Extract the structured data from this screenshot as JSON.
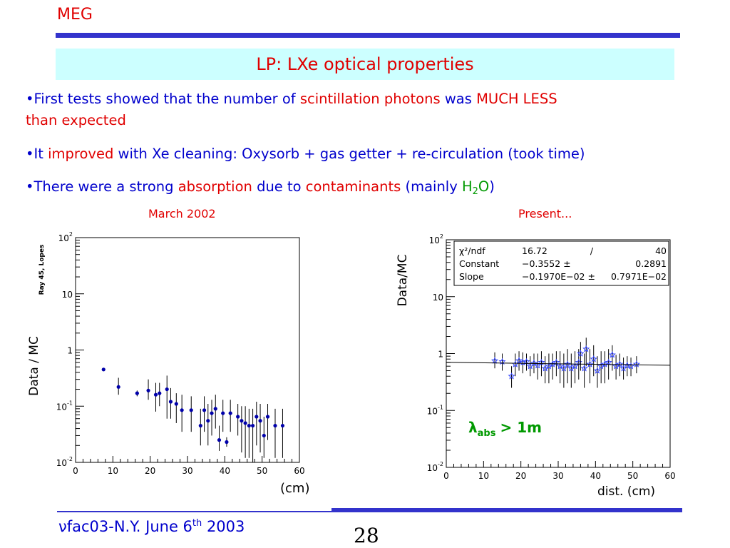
{
  "header": {
    "title": "MEG"
  },
  "slide": {
    "title": "LP: LXe optical properties"
  },
  "bullets": {
    "b1": {
      "p1": "•First tests showed that the number of ",
      "p2": "scintillation photons",
      "p3": " was ",
      "p4": "MUCH LESS",
      "p5": "than expected"
    },
    "b2": {
      "p1": "•It ",
      "p2": "improved",
      "p3": " with Xe cleaning: Oxysorb + gas getter + re-circulation (took time)"
    },
    "b3": {
      "p1": "•There were a strong ",
      "p2": "absorption",
      "p3": " due to ",
      "p4": "contaminants",
      "p5": " (mainly ",
      "p6": "H",
      "p7": "2",
      "p8": "O",
      "p9": ")"
    }
  },
  "captions": {
    "left": "March 2002",
    "right": "Present..."
  },
  "footer": {
    "prefix": "ν",
    "text": "fac03-N.Y. June 6",
    "sup": "th",
    "year": " 2003",
    "page_number": "28"
  },
  "colors": {
    "accent_blue": "#3333cc",
    "title_bg": "#ccffff",
    "text_blue": "#0000cc",
    "text_red": "#e00000",
    "text_green": "#009900"
  },
  "chart_data": [
    {
      "type": "scatter",
      "title": "March 2002",
      "ylabel": "Data / MC",
      "ylabel_sub": "Ray 45, Lopes",
      "xlabel": "(cm)",
      "xlim": [
        0,
        60
      ],
      "ylim": [
        0.01,
        100
      ],
      "yscale": "log",
      "xticks": [
        "0",
        "10",
        "20",
        "30",
        "40",
        "50",
        "60"
      ],
      "yticks": [
        {
          "base": "10",
          "exp": "2"
        },
        {
          "base": "10",
          "exp": ""
        },
        {
          "base": "1",
          "exp": ""
        },
        {
          "base": "10",
          "exp": "-1"
        },
        {
          "base": "10",
          "exp": "-2"
        }
      ],
      "points": [
        {
          "x": 7.5,
          "y": 0.45,
          "lo": 0.42,
          "hi": 0.48
        },
        {
          "x": 11.5,
          "y": 0.22,
          "lo": 0.16,
          "hi": 0.32
        },
        {
          "x": 16.5,
          "y": 0.17,
          "lo": 0.15,
          "hi": 0.19
        },
        {
          "x": 19.5,
          "y": 0.19,
          "lo": 0.13,
          "hi": 0.3
        },
        {
          "x": 21.5,
          "y": 0.16,
          "lo": 0.08,
          "hi": 0.26
        },
        {
          "x": 22.5,
          "y": 0.17,
          "lo": 0.1,
          "hi": 0.26
        },
        {
          "x": 24.5,
          "y": 0.2,
          "lo": 0.06,
          "hi": 0.35
        },
        {
          "x": 25.5,
          "y": 0.12,
          "lo": 0.06,
          "hi": 0.21
        },
        {
          "x": 27.0,
          "y": 0.11,
          "lo": 0.05,
          "hi": 0.17
        },
        {
          "x": 28.5,
          "y": 0.085,
          "lo": 0.035,
          "hi": 0.16
        },
        {
          "x": 31.0,
          "y": 0.085,
          "lo": 0.035,
          "hi": 0.15
        },
        {
          "x": 33.5,
          "y": 0.045,
          "lo": 0.02,
          "hi": 0.09
        },
        {
          "x": 34.5,
          "y": 0.085,
          "lo": 0.035,
          "hi": 0.15
        },
        {
          "x": 35.5,
          "y": 0.055,
          "lo": 0.02,
          "hi": 0.11
        },
        {
          "x": 36.5,
          "y": 0.075,
          "lo": 0.03,
          "hi": 0.13
        },
        {
          "x": 37.5,
          "y": 0.09,
          "lo": 0.04,
          "hi": 0.16
        },
        {
          "x": 38.5,
          "y": 0.025,
          "lo": 0.016,
          "hi": 0.045
        },
        {
          "x": 39.5,
          "y": 0.075,
          "lo": 0.035,
          "hi": 0.13
        },
        {
          "x": 40.5,
          "y": 0.023,
          "lo": 0.019,
          "hi": 0.028
        },
        {
          "x": 41.5,
          "y": 0.075,
          "lo": 0.035,
          "hi": 0.13
        },
        {
          "x": 43.5,
          "y": 0.065,
          "lo": 0.03,
          "hi": 0.11
        },
        {
          "x": 44.5,
          "y": 0.055,
          "lo": 0.015,
          "hi": 0.1
        },
        {
          "x": 45.5,
          "y": 0.05,
          "lo": 0.012,
          "hi": 0.1
        },
        {
          "x": 46.5,
          "y": 0.045,
          "lo": 0.012,
          "hi": 0.09
        },
        {
          "x": 47.5,
          "y": 0.045,
          "lo": 0.01,
          "hi": 0.09
        },
        {
          "x": 48.5,
          "y": 0.065,
          "lo": 0.02,
          "hi": 0.12
        },
        {
          "x": 49.5,
          "y": 0.055,
          "lo": 0.015,
          "hi": 0.11
        },
        {
          "x": 50.5,
          "y": 0.03,
          "lo": 0.012,
          "hi": 0.065
        },
        {
          "x": 51.5,
          "y": 0.065,
          "lo": 0.025,
          "hi": 0.11
        },
        {
          "x": 53.5,
          "y": 0.045,
          "lo": 0.012,
          "hi": 0.09
        },
        {
          "x": 55.5,
          "y": 0.045,
          "lo": 0.012,
          "hi": 0.09
        }
      ]
    },
    {
      "type": "scatter",
      "title": "Present...",
      "ylabel": "Data/MC",
      "xlabel": "dist. (cm)",
      "xlim": [
        0,
        60
      ],
      "ylim": [
        0.01,
        100
      ],
      "yscale": "log",
      "xticks": [
        "0",
        "10",
        "20",
        "30",
        "40",
        "50",
        "60"
      ],
      "yticks": [
        {
          "base": "10",
          "exp": "2"
        },
        {
          "base": "10",
          "exp": ""
        },
        {
          "base": "1",
          "exp": ""
        },
        {
          "base": "10",
          "exp": "-1"
        },
        {
          "base": "10",
          "exp": "-2"
        }
      ],
      "fit": {
        "constant": -0.3552,
        "slope": -0.00197
      },
      "fit_box": {
        "rows": [
          [
            "χ²/ndf",
            "16.72",
            "/",
            "40"
          ],
          [
            "Constant",
            "−0.3552 ±",
            "",
            "0.2891"
          ],
          [
            "Slope",
            "−0.1970E−02 ±",
            "",
            "0.7971E−02"
          ]
        ]
      },
      "annotation": {
        "symbol": "λ",
        "sub": "abs",
        "text": "> 1m"
      },
      "points": [
        {
          "x": 13.0,
          "y": 0.75,
          "lo": 0.55,
          "hi": 1.05
        },
        {
          "x": 15.0,
          "y": 0.72,
          "lo": 0.5,
          "hi": 1.0
        },
        {
          "x": 17.5,
          "y": 0.4,
          "lo": 0.25,
          "hi": 0.6
        },
        {
          "x": 18.5,
          "y": 0.65,
          "lo": 0.4,
          "hi": 1.0
        },
        {
          "x": 19.5,
          "y": 0.75,
          "lo": 0.5,
          "hi": 1.1
        },
        {
          "x": 20.5,
          "y": 0.7,
          "lo": 0.45,
          "hi": 1.05
        },
        {
          "x": 21.5,
          "y": 0.72,
          "lo": 0.5,
          "hi": 1.0
        },
        {
          "x": 22.5,
          "y": 0.6,
          "lo": 0.4,
          "hi": 0.9
        },
        {
          "x": 23.5,
          "y": 0.68,
          "lo": 0.45,
          "hi": 1.0
        },
        {
          "x": 24.5,
          "y": 0.62,
          "lo": 0.35,
          "hi": 1.0
        },
        {
          "x": 25.5,
          "y": 0.7,
          "lo": 0.4,
          "hi": 1.1
        },
        {
          "x": 26.5,
          "y": 0.55,
          "lo": 0.3,
          "hi": 0.9
        },
        {
          "x": 27.5,
          "y": 0.6,
          "lo": 0.3,
          "hi": 1.0
        },
        {
          "x": 28.5,
          "y": 0.65,
          "lo": 0.35,
          "hi": 1.0
        },
        {
          "x": 29.5,
          "y": 0.7,
          "lo": 0.4,
          "hi": 1.1
        },
        {
          "x": 30.5,
          "y": 0.6,
          "lo": 0.3,
          "hi": 1.1
        },
        {
          "x": 31.5,
          "y": 0.55,
          "lo": 0.25,
          "hi": 1.0
        },
        {
          "x": 32.5,
          "y": 0.65,
          "lo": 0.3,
          "hi": 1.2
        },
        {
          "x": 33.5,
          "y": 0.55,
          "lo": 0.25,
          "hi": 1.0
        },
        {
          "x": 34.5,
          "y": 0.6,
          "lo": 0.3,
          "hi": 1.1
        },
        {
          "x": 35.5,
          "y": 0.7,
          "lo": 0.35,
          "hi": 1.2
        },
        {
          "x": 36.0,
          "y": 1.0,
          "lo": 0.5,
          "hi": 1.6
        },
        {
          "x": 37.0,
          "y": 0.55,
          "lo": 0.25,
          "hi": 1.0
        },
        {
          "x": 37.5,
          "y": 1.2,
          "lo": 0.6,
          "hi": 1.9
        },
        {
          "x": 38.5,
          "y": 0.65,
          "lo": 0.3,
          "hi": 1.2
        },
        {
          "x": 39.5,
          "y": 0.8,
          "lo": 0.4,
          "hi": 1.4
        },
        {
          "x": 40.5,
          "y": 0.5,
          "lo": 0.25,
          "hi": 0.9
        },
        {
          "x": 41.5,
          "y": 0.6,
          "lo": 0.3,
          "hi": 1.1
        },
        {
          "x": 42.5,
          "y": 0.65,
          "lo": 0.3,
          "hi": 1.1
        },
        {
          "x": 43.5,
          "y": 0.7,
          "lo": 0.35,
          "hi": 1.2
        },
        {
          "x": 44.5,
          "y": 0.95,
          "lo": 0.5,
          "hi": 1.4
        },
        {
          "x": 45.5,
          "y": 0.6,
          "lo": 0.35,
          "hi": 0.95
        },
        {
          "x": 46.5,
          "y": 0.65,
          "lo": 0.4,
          "hi": 1.0
        },
        {
          "x": 47.5,
          "y": 0.55,
          "lo": 0.35,
          "hi": 0.85
        },
        {
          "x": 48.5,
          "y": 0.62,
          "lo": 0.4,
          "hi": 0.9
        },
        {
          "x": 49.5,
          "y": 0.6,
          "lo": 0.4,
          "hi": 0.85
        },
        {
          "x": 51.0,
          "y": 0.65,
          "lo": 0.45,
          "hi": 0.9
        }
      ]
    }
  ]
}
